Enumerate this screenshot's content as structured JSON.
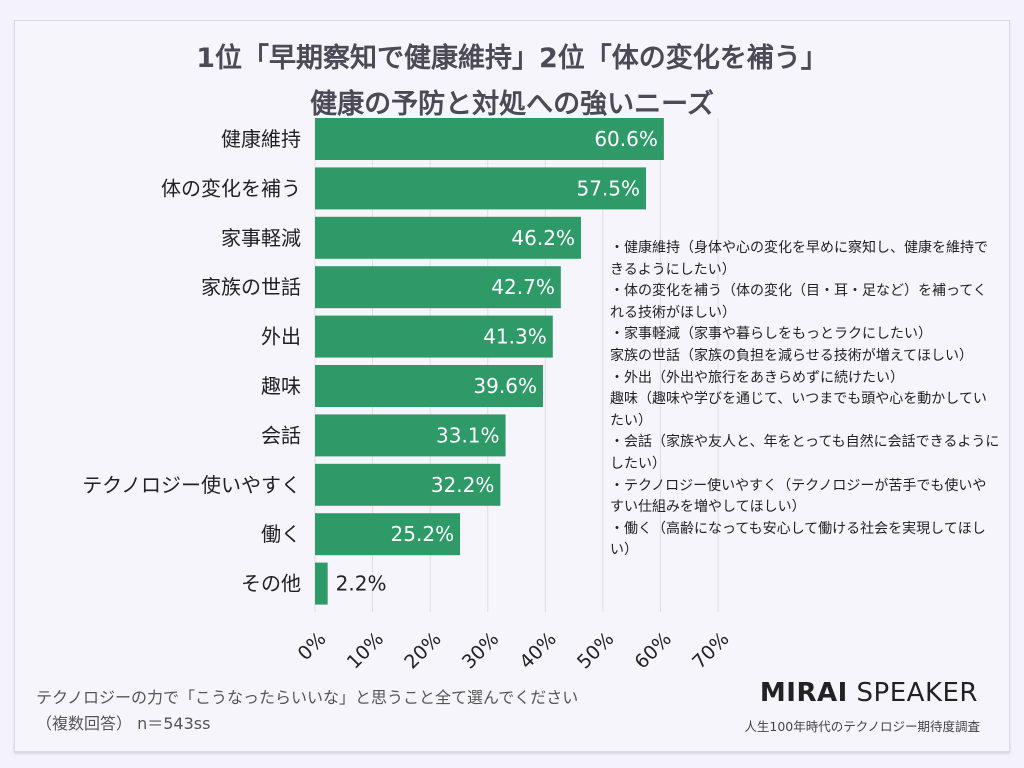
{
  "title_line1": "1位「早期察知で健康維持」2位「体の変化を補う」",
  "title_line2": "健康の予防と対処への強いニーズ",
  "chart_data": {
    "type": "bar",
    "orientation": "horizontal",
    "categories": [
      "健康維持",
      "体の変化を補う",
      "家事軽減",
      "家族の世話",
      "外出",
      "趣味",
      "会話",
      "テクノロジー使いやすく",
      "働く",
      "その他"
    ],
    "values": [
      60.6,
      57.5,
      46.2,
      42.7,
      41.3,
      39.6,
      33.1,
      32.2,
      25.2,
      2.2
    ],
    "data_labels": [
      "60.6%",
      "57.5%",
      "46.2%",
      "42.7%",
      "41.3%",
      "39.6%",
      "33.1%",
      "32.2%",
      "25.2%",
      "2.2%"
    ],
    "xlim": [
      0,
      70
    ],
    "x_ticks": [
      "0%",
      "10%",
      "20%",
      "30%",
      "40%",
      "50%",
      "60%",
      "70%"
    ],
    "grid": true,
    "bar_color": "#2e9a68"
  },
  "notes": [
    "・健康維持（身体や心の変化を早めに察知し、健康を維持できるようにしたい）",
    "・体の変化を補う（体の変化（目・耳・足など）を補ってくれる技術がほしい）",
    "・家事軽減（家事や暮らしをもっとラクにしたい）",
    "家族の世話（家族の負担を減らせる技術が増えてほしい）",
    "・外出（外出や旅行をあきらめずに続けたい）",
    "趣味（趣味や学びを通じて、いつまでも頭や心を動かしていたい）",
    "・会話（家族や友人と、年をとっても自然に会話できるようにしたい）",
    "・テクノロジー使いやすく（テクノロジーが苦手でも使いやすい仕組みを増やしてほしい）",
    "・働く（高齢になっても安心して働ける社会を実現してほしい）"
  ],
  "footer": {
    "question": "テクノロジーの力で「こうなったらいいな」と思うこと全て選んでください",
    "sample": "（複数回答） n＝543ss",
    "brand_bold": "MIRAI",
    "brand_light": "SPEAKER",
    "brand_sub": "人生100年時代のテクノロジー期待度調査"
  }
}
